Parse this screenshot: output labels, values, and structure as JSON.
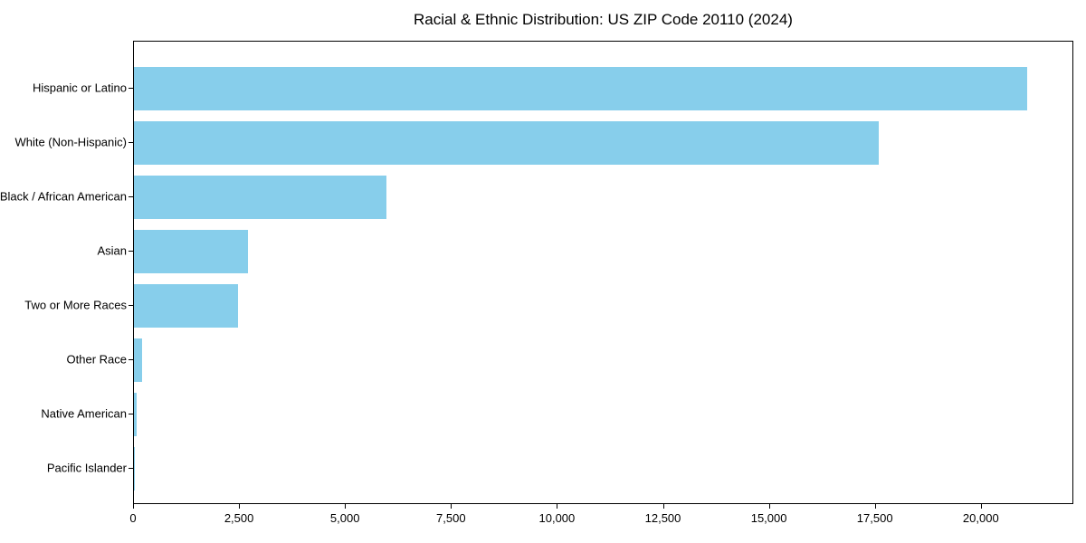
{
  "chart_data": {
    "type": "bar",
    "orientation": "horizontal",
    "title": "Racial & Ethnic Distribution: US ZIP Code 20110 (2024)",
    "xlabel": "",
    "ylabel": "",
    "categories": [
      "Hispanic or Latino",
      "White (Non-Hispanic)",
      "Black / African American",
      "Asian",
      "Two or More Races",
      "Other Race",
      "Native American",
      "Pacific Islander"
    ],
    "values": [
      21070,
      17560,
      5950,
      2690,
      2450,
      185,
      65,
      10
    ],
    "xlim": [
      0,
      22140
    ],
    "x_ticks": [
      {
        "value": 0,
        "label": "0"
      },
      {
        "value": 2500,
        "label": "2,500"
      },
      {
        "value": 5000,
        "label": "5,000"
      },
      {
        "value": 7500,
        "label": "7,500"
      },
      {
        "value": 10000,
        "label": "10,000"
      },
      {
        "value": 12500,
        "label": "12,500"
      },
      {
        "value": 15000,
        "label": "15,000"
      },
      {
        "value": 17500,
        "label": "17,500"
      },
      {
        "value": 20000,
        "label": "20,000"
      }
    ],
    "bar_color": "#87CEEB",
    "grid": false,
    "legend": null,
    "frame_color": "#000000"
  }
}
